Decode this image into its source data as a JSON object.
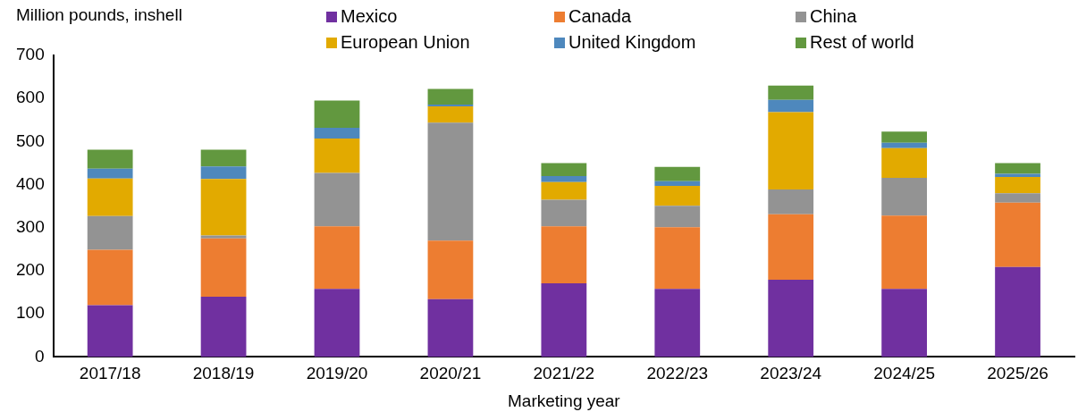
{
  "chart_data": {
    "type": "bar",
    "stacked": true,
    "ylabel": "Million pounds, inshell",
    "xlabel": "Marketing year",
    "categories": [
      "2017/18",
      "2018/19",
      "2019/20",
      "2020/21",
      "2021/22",
      "2022/23",
      "2023/24",
      "2024/25",
      "2025/26"
    ],
    "series": [
      {
        "name": "Mexico",
        "color": "#7030a0",
        "values": [
          120,
          140,
          158,
          134,
          171,
          158,
          179,
          158,
          209
        ]
      },
      {
        "name": "Canada",
        "color": "#ed7d31",
        "values": [
          129,
          135,
          145,
          136,
          132,
          143,
          152,
          170,
          149
        ]
      },
      {
        "name": "China",
        "color": "#939393",
        "values": [
          78,
          7,
          124,
          274,
          62,
          50,
          58,
          88,
          22
        ]
      },
      {
        "name": "European Union",
        "color": "#e2aa00",
        "values": [
          87,
          131,
          80,
          38,
          41,
          46,
          179,
          69,
          38
        ]
      },
      {
        "name": "United Kingdom",
        "color": "#4e88bd",
        "values": [
          23,
          29,
          25,
          4,
          14,
          11,
          29,
          12,
          7
        ]
      },
      {
        "name": "Rest of world",
        "color": "#62983f",
        "values": [
          44,
          39,
          63,
          36,
          30,
          33,
          33,
          26,
          25
        ]
      }
    ],
    "ylim": [
      0,
      700
    ],
    "yticks": [
      0,
      100,
      200,
      300,
      400,
      500,
      600,
      700
    ],
    "grid": false,
    "legend": "top"
  }
}
